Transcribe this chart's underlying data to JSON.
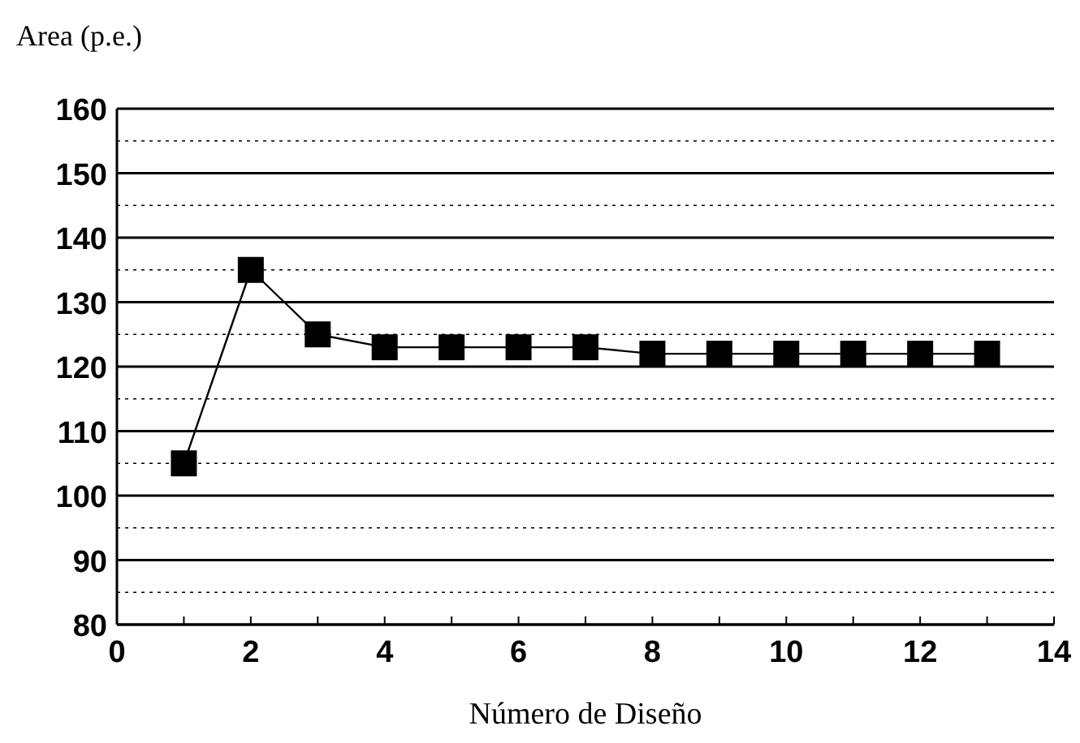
{
  "chart_data": {
    "type": "line",
    "ylabel": "Area (p.e.)",
    "xlabel": "Número de Diseño",
    "x": [
      1,
      2,
      3,
      4,
      5,
      6,
      7,
      8,
      9,
      10,
      11,
      12,
      13
    ],
    "series": [
      {
        "color": "#000000",
        "values": [
          105,
          135,
          125,
          123,
          123,
          123,
          123,
          122,
          122,
          122,
          122,
          122,
          122
        ]
      }
    ],
    "xlim": [
      0,
      14
    ],
    "xticks": [
      0,
      {
        "value": 1,
        "label": null
      },
      2,
      {
        "value": 3,
        "label": null
      },
      4,
      {
        "value": 5,
        "label": null
      },
      6,
      {
        "value": 7,
        "label": null
      },
      8,
      {
        "value": 9,
        "label": null
      },
      10,
      {
        "value": 11,
        "label": null
      },
      12,
      {
        "value": 13,
        "label": null
      },
      14
    ],
    "ylim": [
      80,
      160
    ],
    "yticks": [
      80,
      {
        "value": 85,
        "label": null
      },
      90,
      {
        "value": 95,
        "label": null
      },
      100,
      {
        "value": 105,
        "label": null
      },
      110,
      {
        "value": 115,
        "label": null
      },
      120,
      {
        "value": 125,
        "label": null
      },
      130,
      {
        "value": 135,
        "label": null
      },
      140,
      {
        "value": 145,
        "label": null
      },
      150,
      {
        "value": 155,
        "label": null
      },
      160
    ],
    "grid": "y",
    "marker": "square",
    "line_style": "solid"
  }
}
